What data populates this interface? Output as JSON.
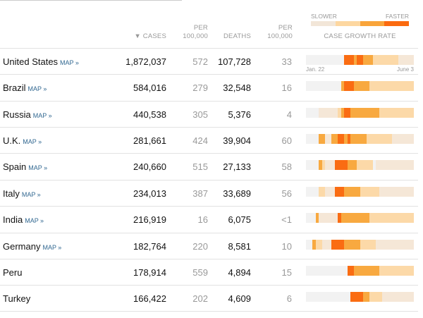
{
  "headers": {
    "cases": "▼ CASES",
    "per1": "PER",
    "per2": "100,000",
    "deaths": "DEATHS",
    "dper1": "PER",
    "dper2": "100,000",
    "growth": "CASE GROWTH RATE"
  },
  "legend": {
    "slower": "SLOWER",
    "faster": "FASTER",
    "colors": [
      "#f2e6d8",
      "#fdd7a0",
      "#f9a43a",
      "#fb6a0f"
    ]
  },
  "level_colors": [
    "#f2f2f2",
    "#f5e7d7",
    "#fcd9a8",
    "#f8a940",
    "#fa6c12"
  ],
  "dates": {
    "start": "Jan. 22",
    "end": "June 3"
  },
  "map_label": "MAP »",
  "rows": [
    {
      "name": "United States",
      "map": true,
      "cases": "1,872,037",
      "cases_per": "572",
      "deaths": "107,728",
      "deaths_per": "33",
      "growth": "0000000000004443443332222222211111"
    },
    {
      "name": "Brazil",
      "map": true,
      "cases": "584,016",
      "cases_per": "279",
      "deaths": "32,548",
      "deaths_per": "16",
      "growth": "0000000000034443333322222222222222"
    },
    {
      "name": "Russia",
      "map": true,
      "cases": "440,538",
      "cases_per": "305",
      "deaths": "5,376",
      "deaths_per": "4",
      "growth": "0000111111234433333333322222222222"
    },
    {
      "name": "U.K.",
      "map": true,
      "cases": "281,661",
      "cases_per": "424",
      "deaths": "39,904",
      "deaths_per": "60",
      "growth": "0000331133443433333222222221111111"
    },
    {
      "name": "Spain",
      "map": true,
      "cases": "240,660",
      "cases_per": "515",
      "deaths": "27,133",
      "deaths_per": "58",
      "growth": "0000321114444333222220111111111111"
    },
    {
      "name": "Italy",
      "map": true,
      "cases": "234,013",
      "cases_per": "387",
      "deaths": "33,689",
      "deaths_per": "56",
      "growth": "0000221114443333322222211111111111"
    },
    {
      "name": "India",
      "map": true,
      "cases": "216,919",
      "cases_per": "16",
      "deaths": "6,075",
      "deaths_per": "<1",
      "growth": "0003111111433333333322222222222222"
    },
    {
      "name": "Germany",
      "map": true,
      "cases": "182,764",
      "cases_per": "220",
      "deaths": "8,581",
      "deaths_per": "10",
      "growth": "0032211144443333322222111111111111"
    },
    {
      "name": "Peru",
      "map": false,
      "cases": "178,914",
      "cases_per": "559",
      "deaths": "4,894",
      "deaths_per": "15",
      "growth": "0000000000000443333333322222222222"
    },
    {
      "name": "Turkey",
      "map": false,
      "cases": "166,422",
      "cases_per": "202",
      "deaths": "4,609",
      "deaths_per": "6",
      "growth": "0000000000000044443322221111111111"
    }
  ]
}
